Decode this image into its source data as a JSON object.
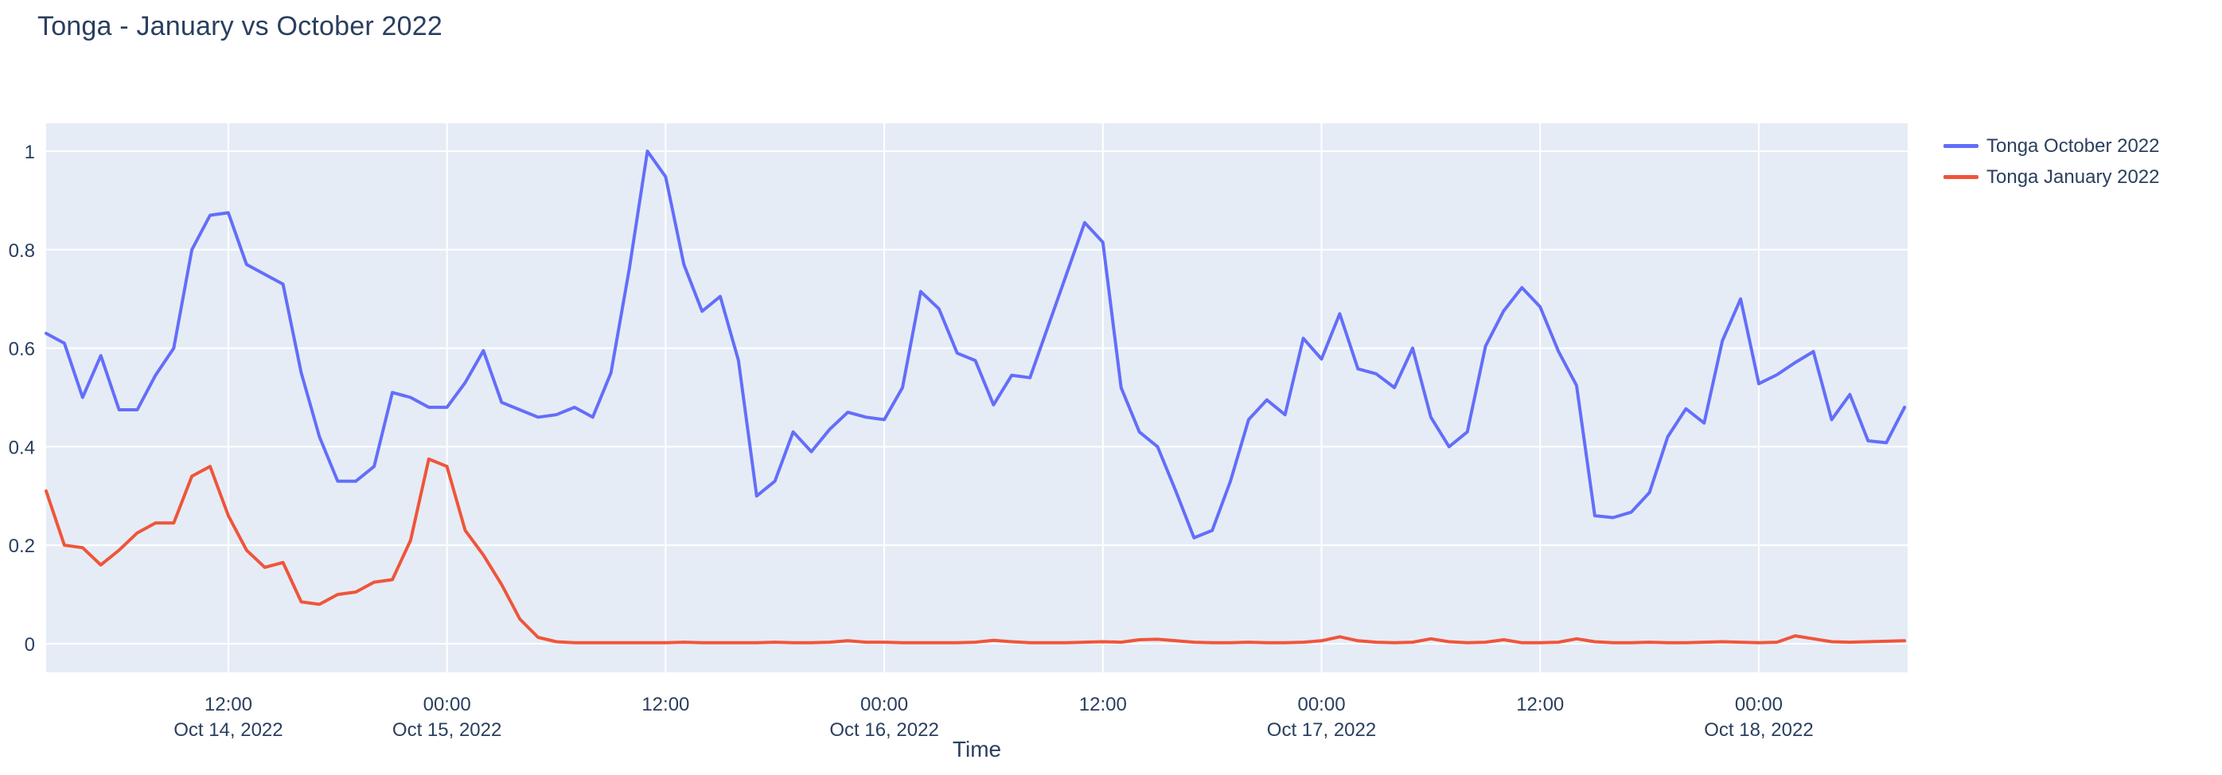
{
  "title": "Tonga - January vs October 2022",
  "colors": {
    "page_background": "#ffffff",
    "plot_background": "#e5ecf6",
    "grid": "#ffffff",
    "text": "#2a3f5f",
    "series_october": "#636efa",
    "series_january": "#ef553b"
  },
  "chart_data": {
    "type": "line",
    "title": "Tonga - January vs October 2022",
    "xlabel": "Time",
    "ylabel": "",
    "legend_position": "right-top",
    "grid": true,
    "ylim": [
      -0.056,
      1.056
    ],
    "yticks": [
      0,
      0.2,
      0.4,
      0.6,
      0.8,
      1
    ],
    "ytick_labels": [
      "0",
      "0.2",
      "0.4",
      "0.6",
      "0.8",
      "1"
    ],
    "x_start": "2022-10-14 02:00",
    "x_end": "2022-10-18 08:00",
    "x_step_hours": 1,
    "xticks": [
      {
        "hour": 10,
        "line1": "12:00",
        "line2": "Oct 14, 2022"
      },
      {
        "hour": 22,
        "line1": "00:00",
        "line2": "Oct 15, 2022"
      },
      {
        "hour": 34,
        "line1": "12:00",
        "line2": ""
      },
      {
        "hour": 46,
        "line1": "00:00",
        "line2": "Oct 16, 2022"
      },
      {
        "hour": 58,
        "line1": "12:00",
        "line2": ""
      },
      {
        "hour": 70,
        "line1": "00:00",
        "line2": "Oct 17, 2022"
      },
      {
        "hour": 82,
        "line1": "12:00",
        "line2": ""
      },
      {
        "hour": 94,
        "line1": "00:00",
        "line2": "Oct 18, 2022"
      }
    ],
    "series": [
      {
        "name": "Tonga October 2022",
        "color": "#636efa",
        "values": [
          0.63,
          0.61,
          0.5,
          0.585,
          0.475,
          0.475,
          0.545,
          0.6,
          0.8,
          0.87,
          0.875,
          0.77,
          0.75,
          0.73,
          0.55,
          0.42,
          0.33,
          0.33,
          0.36,
          0.51,
          0.5,
          0.48,
          0.48,
          0.53,
          0.595,
          0.49,
          0.475,
          0.46,
          0.465,
          0.48,
          0.46,
          0.55,
          0.76,
          1.0,
          0.948,
          0.77,
          0.675,
          0.705,
          0.575,
          0.3,
          0.33,
          0.43,
          0.39,
          0.435,
          0.47,
          0.46,
          0.455,
          0.52,
          0.715,
          0.68,
          0.59,
          0.575,
          0.485,
          0.545,
          0.54,
          0.645,
          0.75,
          0.855,
          0.815,
          0.52,
          0.43,
          0.4,
          0.31,
          0.215,
          0.23,
          0.33,
          0.455,
          0.495,
          0.465,
          0.62,
          0.578,
          0.67,
          0.558,
          0.548,
          0.52,
          0.6,
          0.46,
          0.4,
          0.43,
          0.604,
          0.676,
          0.723,
          0.684,
          0.594,
          0.524,
          0.26,
          0.256,
          0.267,
          0.307,
          0.42,
          0.477,
          0.448,
          0.615,
          0.7,
          0.528,
          0.546,
          0.571,
          0.593,
          0.455,
          0.506,
          0.412,
          0.408,
          0.48
        ]
      },
      {
        "name": "Tonga January 2022",
        "color": "#ef553b",
        "values": [
          0.31,
          0.2,
          0.195,
          0.16,
          0.19,
          0.225,
          0.245,
          0.245,
          0.34,
          0.36,
          0.26,
          0.19,
          0.155,
          0.165,
          0.085,
          0.08,
          0.1,
          0.105,
          0.125,
          0.13,
          0.21,
          0.375,
          0.36,
          0.23,
          0.18,
          0.12,
          0.05,
          0.013,
          0.004,
          0.002,
          0.002,
          0.002,
          0.002,
          0.002,
          0.002,
          0.003,
          0.002,
          0.002,
          0.002,
          0.002,
          0.003,
          0.002,
          0.002,
          0.003,
          0.006,
          0.003,
          0.003,
          0.002,
          0.002,
          0.002,
          0.002,
          0.003,
          0.007,
          0.004,
          0.002,
          0.002,
          0.002,
          0.003,
          0.004,
          0.003,
          0.008,
          0.009,
          0.006,
          0.003,
          0.002,
          0.002,
          0.003,
          0.002,
          0.002,
          0.003,
          0.006,
          0.014,
          0.006,
          0.003,
          0.002,
          0.003,
          0.01,
          0.004,
          0.002,
          0.003,
          0.008,
          0.002,
          0.002,
          0.003,
          0.01,
          0.004,
          0.002,
          0.002,
          0.003,
          0.002,
          0.002,
          0.003,
          0.004,
          0.003,
          0.002,
          0.003,
          0.016,
          0.01,
          0.004,
          0.003,
          0.004,
          0.005,
          0.006
        ]
      }
    ]
  }
}
